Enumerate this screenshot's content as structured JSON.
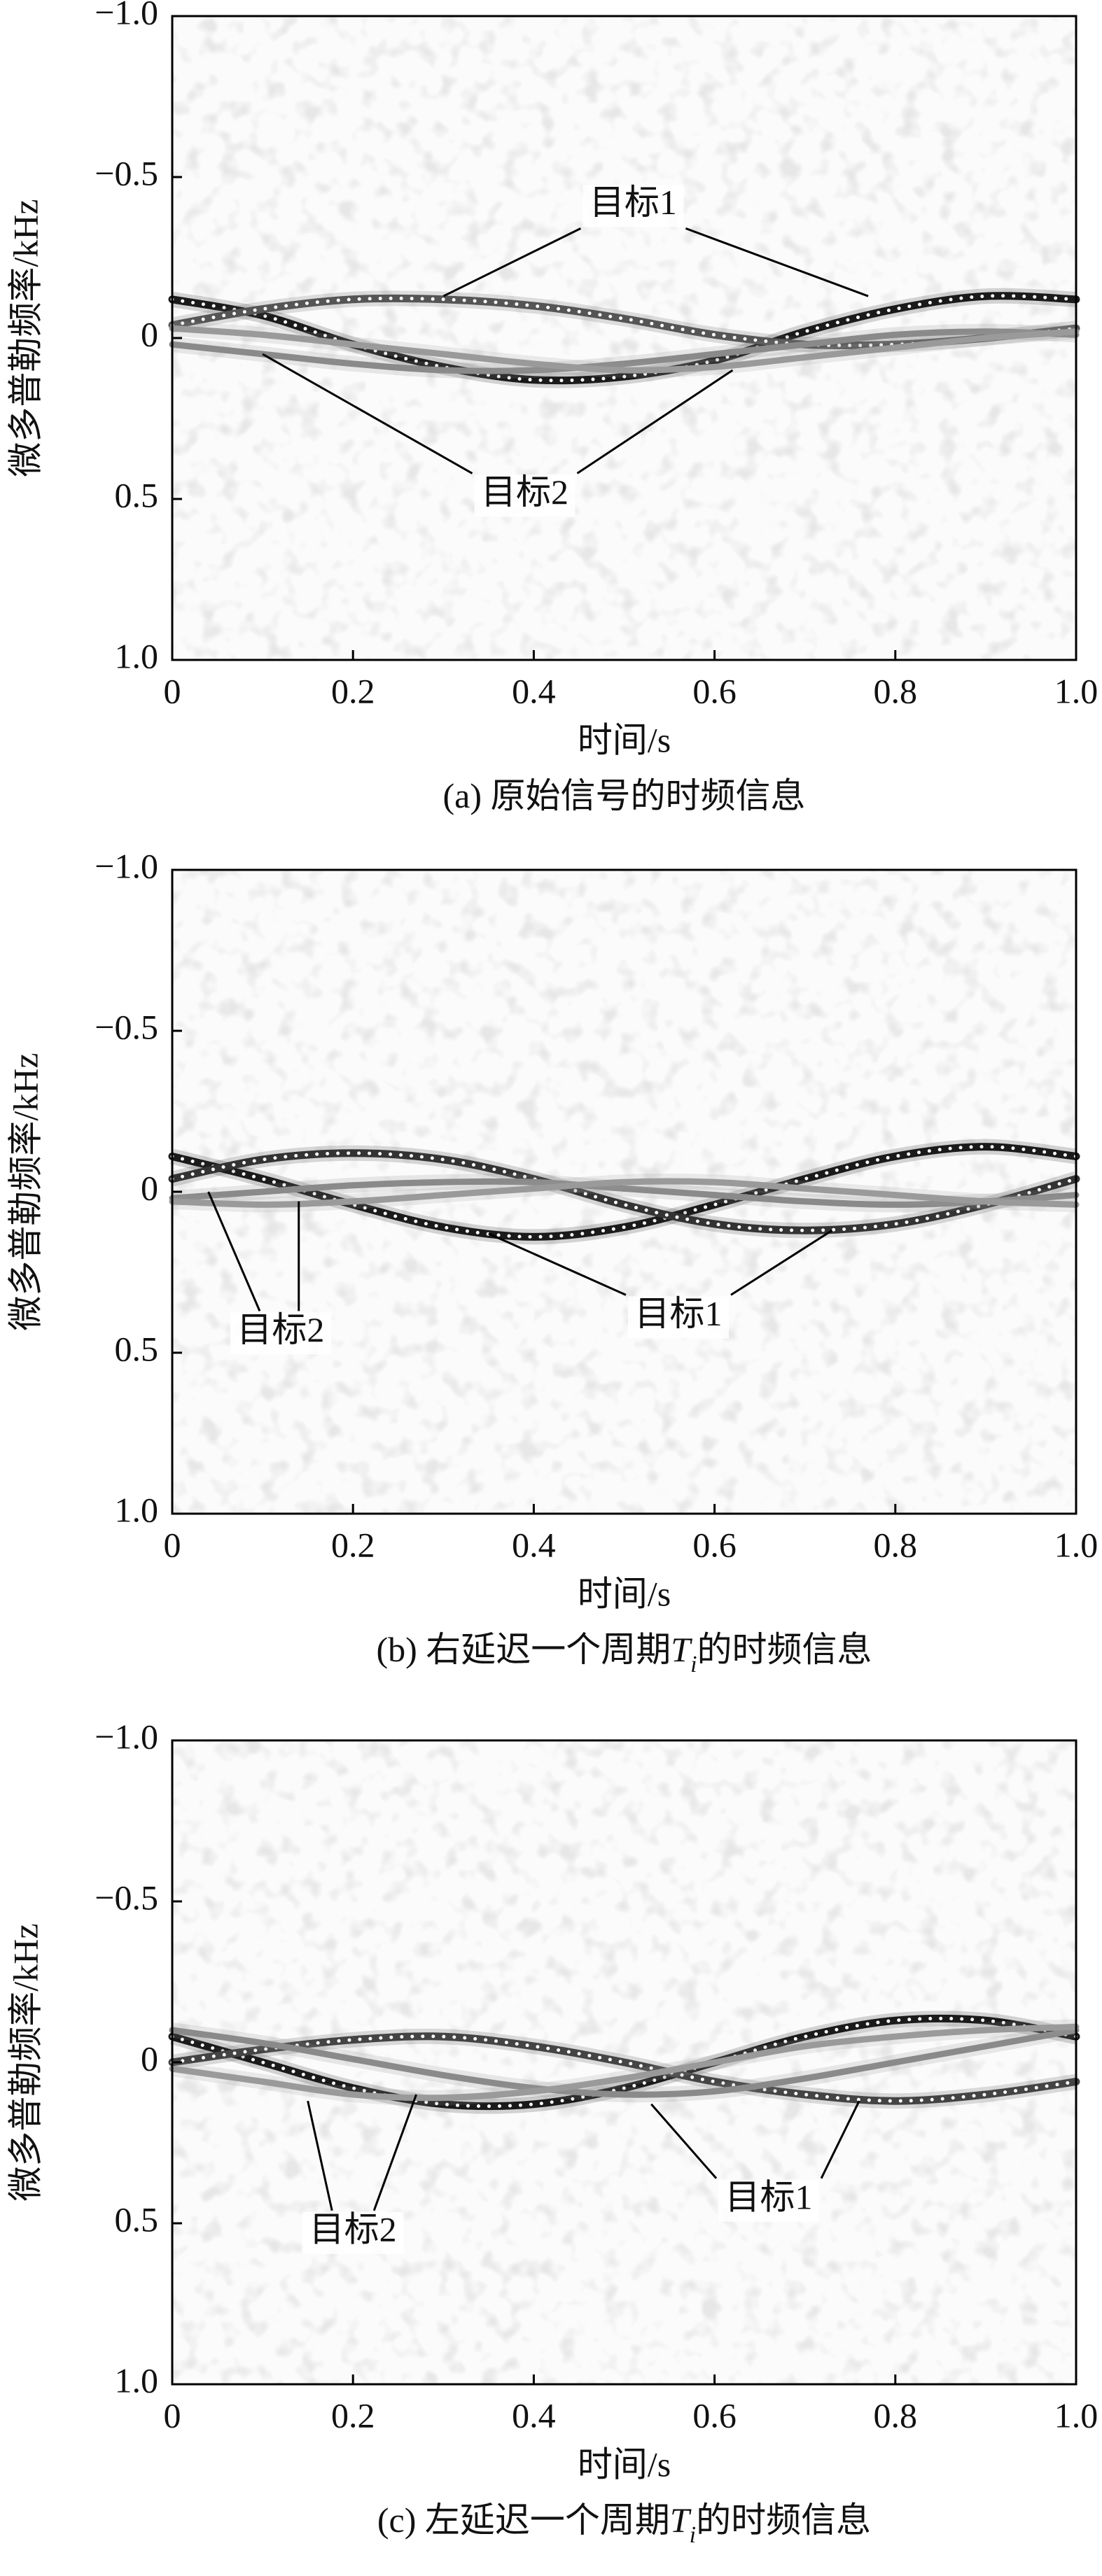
{
  "chart_data": [
    {
      "type": "line",
      "xlabel": "时间/s",
      "ylabel": "微多普勒频率/kHz",
      "caption": [
        {
          "text": "(a) 原始信号的时频信息"
        }
      ],
      "x": [
        0,
        0.1,
        0.2,
        0.3,
        0.4,
        0.5,
        0.6,
        0.7,
        0.8,
        0.9,
        1
      ],
      "series": [
        {
          "color": "#1a1a1a",
          "dotted": true,
          "values": [
            -0.12,
            -0.07,
            0.02,
            0.09,
            0.13,
            0.12,
            0.07,
            -0.02,
            -0.09,
            -0.13,
            -0.12
          ]
        },
        {
          "color": "#555555",
          "dotted": true,
          "values": [
            -0.04,
            -0.09,
            -0.12,
            -0.12,
            -0.1,
            -0.06,
            -0.01,
            0.02,
            0.02,
            0,
            -0.03
          ]
        },
        {
          "color": "#8a8a8a",
          "dotted": false,
          "values": [
            0.02,
            0.05,
            0.08,
            0.1,
            0.1,
            0.08,
            0.05,
            0.02,
            -0.01,
            -0.02,
            -0.01
          ]
        },
        {
          "color": "#9a9a9a",
          "dotted": false,
          "values": [
            -0.03,
            -0.01,
            0.02,
            0.05,
            0.08,
            0.1,
            0.09,
            0.06,
            0.03,
            0,
            -0.02
          ]
        }
      ],
      "annotations": [
        {
          "text": "目标1",
          "at": [
            0.51,
            -0.41
          ],
          "targets": [
            [
              0.3,
              -0.13
            ],
            [
              0.77,
              -0.13
            ]
          ]
        },
        {
          "text": "目标2",
          "at": [
            0.39,
            0.49
          ],
          "targets": [
            [
              0.1,
              0.05
            ],
            [
              0.62,
              0.1
            ]
          ]
        }
      ],
      "xlim": [
        0,
        1
      ],
      "xticks": [
        0,
        0.2,
        0.4,
        0.6,
        0.8,
        {
          "value": 1,
          "label": "1.0"
        }
      ],
      "ylim": [
        -1,
        1
      ],
      "y_inverted": true,
      "yticks": [
        {
          "value": -1,
          "label": "−1.0"
        },
        {
          "value": -0.5,
          "label": "−0.5"
        },
        0,
        0.5,
        {
          "value": 1,
          "label": "1.0"
        }
      ]
    },
    {
      "type": "line",
      "xlabel": "时间/s",
      "ylabel": "微多普勒频率/kHz",
      "caption": [
        {
          "text": "(b) 右延迟一个周期"
        },
        {
          "text": "T",
          "style": "italic"
        },
        {
          "text": "i",
          "style": "sub"
        },
        {
          "text": "的时频信息"
        }
      ],
      "x": [
        0,
        0.1,
        0.2,
        0.3,
        0.4,
        0.5,
        0.6,
        0.7,
        0.8,
        0.9,
        1
      ],
      "series": [
        {
          "color": "#1a1a1a",
          "dotted": true,
          "values": [
            -0.11,
            -0.04,
            0.04,
            0.11,
            0.14,
            0.11,
            0.04,
            -0.04,
            -0.11,
            -0.14,
            -0.11
          ]
        },
        {
          "color": "#333333",
          "dotted": true,
          "values": [
            -0.04,
            -0.1,
            -0.12,
            -0.1,
            -0.04,
            0.04,
            0.1,
            0.12,
            0.1,
            0.04,
            -0.04
          ]
        },
        {
          "color": "#8a8a8a",
          "dotted": false,
          "values": [
            0.02,
            0,
            -0.02,
            -0.03,
            -0.03,
            -0.01,
            0.01,
            0.03,
            0.04,
            0.03,
            0.01
          ]
        },
        {
          "color": "#9a9a9a",
          "dotted": false,
          "values": [
            0.03,
            0.04,
            0.03,
            0.01,
            -0.01,
            -0.03,
            -0.03,
            -0.01,
            0.01,
            0.03,
            0.04
          ]
        }
      ],
      "annotations": [
        {
          "text": "目标2",
          "at": [
            0.12,
            0.44
          ],
          "targets": [
            [
              0.04,
              0
            ],
            [
              0.14,
              0.03
            ]
          ]
        },
        {
          "text": "目标1",
          "at": [
            0.56,
            0.39
          ],
          "targets": [
            [
              0.35,
              0.13
            ],
            [
              0.73,
              0.12
            ]
          ]
        }
      ],
      "xlim": [
        0,
        1
      ],
      "xticks": [
        0,
        0.2,
        0.4,
        0.6,
        0.8,
        {
          "value": 1,
          "label": "1.0"
        }
      ],
      "ylim": [
        -1,
        1
      ],
      "y_inverted": true,
      "yticks": [
        {
          "value": -1,
          "label": "−1.0"
        },
        {
          "value": -0.5,
          "label": "−0.5"
        },
        0,
        0.5,
        {
          "value": 1,
          "label": "1.0"
        }
      ]
    },
    {
      "type": "line",
      "xlabel": "时间/s",
      "ylabel": "微多普勒频率/kHz",
      "caption": [
        {
          "text": "(c) 左延迟一个周期"
        },
        {
          "text": "T",
          "style": "italic"
        },
        {
          "text": "i",
          "style": "sub"
        },
        {
          "text": "的时频信息"
        }
      ],
      "x": [
        0,
        0.1,
        0.2,
        0.3,
        0.4,
        0.5,
        0.6,
        0.7,
        0.8,
        0.9,
        1
      ],
      "series": [
        {
          "color": "#1a1a1a",
          "dotted": true,
          "values": [
            -0.08,
            0,
            0.08,
            0.13,
            0.13,
            0.08,
            0,
            -0.08,
            -0.13,
            -0.13,
            -0.08
          ]
        },
        {
          "color": "#444444",
          "dotted": true,
          "values": [
            0,
            -0.04,
            -0.07,
            -0.08,
            -0.05,
            0,
            0.06,
            0.1,
            0.12,
            0.1,
            0.06
          ]
        },
        {
          "color": "#8a8a8a",
          "dotted": false,
          "values": [
            -0.1,
            -0.06,
            -0.01,
            0.04,
            0.08,
            0.1,
            0.09,
            0.05,
            0,
            -0.05,
            -0.1
          ]
        },
        {
          "color": "#9a9a9a",
          "dotted": false,
          "values": [
            0.02,
            0.06,
            0.1,
            0.11,
            0.09,
            0.05,
            0,
            -0.05,
            -0.08,
            -0.1,
            -0.11
          ]
        }
      ],
      "annotations": [
        {
          "text": "目标2",
          "at": [
            0.2,
            0.53
          ],
          "targets": [
            [
              0.15,
              0.12
            ],
            [
              0.27,
              0.1
            ]
          ]
        },
        {
          "text": "目标1",
          "at": [
            0.66,
            0.43
          ],
          "targets": [
            [
              0.53,
              0.13
            ],
            [
              0.76,
              0.12
            ]
          ]
        }
      ],
      "xlim": [
        0,
        1
      ],
      "xticks": [
        0,
        0.2,
        0.4,
        0.6,
        0.8,
        {
          "value": 1,
          "label": "1.0"
        }
      ],
      "ylim": [
        -1,
        1
      ],
      "y_inverted": true,
      "yticks": [
        {
          "value": -1,
          "label": "−1.0"
        },
        {
          "value": -0.5,
          "label": "−0.5"
        },
        0,
        0.5,
        {
          "value": 1,
          "label": "1.0"
        }
      ]
    }
  ]
}
